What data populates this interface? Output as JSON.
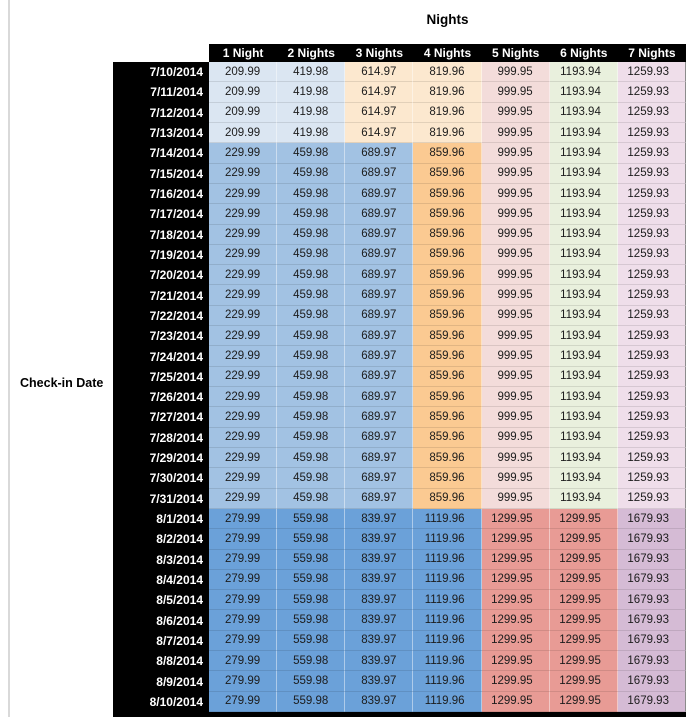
{
  "title": "Nights",
  "row_axis_label": "Check-in Date",
  "columns": [
    "1 Night",
    "2 Nights",
    "3 Nights",
    "4 Nights",
    "5 Nights",
    "6 Nights",
    "7 Nights"
  ],
  "colors": {
    "paleblue": "#dbe6f2",
    "peach": "#fce8cf",
    "pink": "#f3dcda",
    "green": "#e9f0dd",
    "lavender": "#efdeea",
    "medblue": "#a2c2e3",
    "orange": "#fbca92",
    "strongblue": "#6ba1d9",
    "salmon": "#e89b95",
    "purple": "#d5bbd5",
    "header_bg": "#000000",
    "header_text": "#ffffff"
  },
  "band_colors": {
    "a": [
      "paleblue",
      "paleblue",
      "peach",
      "peach",
      "pink",
      "green",
      "lavender"
    ],
    "b": [
      "medblue",
      "medblue",
      "medblue",
      "orange",
      "pink",
      "green",
      "lavender"
    ],
    "c": [
      "strongblue",
      "strongblue",
      "strongblue",
      "strongblue",
      "salmon",
      "salmon",
      "purple"
    ]
  },
  "chart_data": {
    "type": "table",
    "title": "Nights",
    "row_label": "Check-in Date",
    "columns": [
      "1 Night",
      "2 Nights",
      "3 Nights",
      "4 Nights",
      "5 Nights",
      "6 Nights",
      "7 Nights"
    ],
    "rows": [
      {
        "date": "7/10/2014",
        "band": "a",
        "values": [
          209.99,
          419.98,
          614.97,
          819.96,
          999.95,
          1193.94,
          1259.93
        ]
      },
      {
        "date": "7/11/2014",
        "band": "a",
        "values": [
          209.99,
          419.98,
          614.97,
          819.96,
          999.95,
          1193.94,
          1259.93
        ]
      },
      {
        "date": "7/12/2014",
        "band": "a",
        "values": [
          209.99,
          419.98,
          614.97,
          819.96,
          999.95,
          1193.94,
          1259.93
        ]
      },
      {
        "date": "7/13/2014",
        "band": "a",
        "values": [
          209.99,
          419.98,
          614.97,
          819.96,
          999.95,
          1193.94,
          1259.93
        ]
      },
      {
        "date": "7/14/2014",
        "band": "b",
        "values": [
          229.99,
          459.98,
          689.97,
          859.96,
          999.95,
          1193.94,
          1259.93
        ]
      },
      {
        "date": "7/15/2014",
        "band": "b",
        "values": [
          229.99,
          459.98,
          689.97,
          859.96,
          999.95,
          1193.94,
          1259.93
        ]
      },
      {
        "date": "7/16/2014",
        "band": "b",
        "values": [
          229.99,
          459.98,
          689.97,
          859.96,
          999.95,
          1193.94,
          1259.93
        ]
      },
      {
        "date": "7/17/2014",
        "band": "b",
        "values": [
          229.99,
          459.98,
          689.97,
          859.96,
          999.95,
          1193.94,
          1259.93
        ]
      },
      {
        "date": "7/18/2014",
        "band": "b",
        "values": [
          229.99,
          459.98,
          689.97,
          859.96,
          999.95,
          1193.94,
          1259.93
        ]
      },
      {
        "date": "7/19/2014",
        "band": "b",
        "values": [
          229.99,
          459.98,
          689.97,
          859.96,
          999.95,
          1193.94,
          1259.93
        ]
      },
      {
        "date": "7/20/2014",
        "band": "b",
        "values": [
          229.99,
          459.98,
          689.97,
          859.96,
          999.95,
          1193.94,
          1259.93
        ]
      },
      {
        "date": "7/21/2014",
        "band": "b",
        "values": [
          229.99,
          459.98,
          689.97,
          859.96,
          999.95,
          1193.94,
          1259.93
        ]
      },
      {
        "date": "7/22/2014",
        "band": "b",
        "values": [
          229.99,
          459.98,
          689.97,
          859.96,
          999.95,
          1193.94,
          1259.93
        ]
      },
      {
        "date": "7/23/2014",
        "band": "b",
        "values": [
          229.99,
          459.98,
          689.97,
          859.96,
          999.95,
          1193.94,
          1259.93
        ]
      },
      {
        "date": "7/24/2014",
        "band": "b",
        "values": [
          229.99,
          459.98,
          689.97,
          859.96,
          999.95,
          1193.94,
          1259.93
        ]
      },
      {
        "date": "7/25/2014",
        "band": "b",
        "values": [
          229.99,
          459.98,
          689.97,
          859.96,
          999.95,
          1193.94,
          1259.93
        ]
      },
      {
        "date": "7/26/2014",
        "band": "b",
        "values": [
          229.99,
          459.98,
          689.97,
          859.96,
          999.95,
          1193.94,
          1259.93
        ]
      },
      {
        "date": "7/27/2014",
        "band": "b",
        "values": [
          229.99,
          459.98,
          689.97,
          859.96,
          999.95,
          1193.94,
          1259.93
        ]
      },
      {
        "date": "7/28/2014",
        "band": "b",
        "values": [
          229.99,
          459.98,
          689.97,
          859.96,
          999.95,
          1193.94,
          1259.93
        ]
      },
      {
        "date": "7/29/2014",
        "band": "b",
        "values": [
          229.99,
          459.98,
          689.97,
          859.96,
          999.95,
          1193.94,
          1259.93
        ]
      },
      {
        "date": "7/30/2014",
        "band": "b",
        "values": [
          229.99,
          459.98,
          689.97,
          859.96,
          999.95,
          1193.94,
          1259.93
        ]
      },
      {
        "date": "7/31/2014",
        "band": "b",
        "values": [
          229.99,
          459.98,
          689.97,
          859.96,
          999.95,
          1193.94,
          1259.93
        ]
      },
      {
        "date": "8/1/2014",
        "band": "c",
        "values": [
          279.99,
          559.98,
          839.97,
          1119.96,
          1299.95,
          1299.95,
          1679.93
        ]
      },
      {
        "date": "8/2/2014",
        "band": "c",
        "values": [
          279.99,
          559.98,
          839.97,
          1119.96,
          1299.95,
          1299.95,
          1679.93
        ]
      },
      {
        "date": "8/3/2014",
        "band": "c",
        "values": [
          279.99,
          559.98,
          839.97,
          1119.96,
          1299.95,
          1299.95,
          1679.93
        ]
      },
      {
        "date": "8/4/2014",
        "band": "c",
        "values": [
          279.99,
          559.98,
          839.97,
          1119.96,
          1299.95,
          1299.95,
          1679.93
        ]
      },
      {
        "date": "8/5/2014",
        "band": "c",
        "values": [
          279.99,
          559.98,
          839.97,
          1119.96,
          1299.95,
          1299.95,
          1679.93
        ]
      },
      {
        "date": "8/6/2014",
        "band": "c",
        "values": [
          279.99,
          559.98,
          839.97,
          1119.96,
          1299.95,
          1299.95,
          1679.93
        ]
      },
      {
        "date": "8/7/2014",
        "band": "c",
        "values": [
          279.99,
          559.98,
          839.97,
          1119.96,
          1299.95,
          1299.95,
          1679.93
        ]
      },
      {
        "date": "8/8/2014",
        "band": "c",
        "values": [
          279.99,
          559.98,
          839.97,
          1119.96,
          1299.95,
          1299.95,
          1679.93
        ]
      },
      {
        "date": "8/9/2014",
        "band": "c",
        "values": [
          279.99,
          559.98,
          839.97,
          1119.96,
          1299.95,
          1299.95,
          1679.93
        ]
      },
      {
        "date": "8/10/2014",
        "band": "c",
        "values": [
          279.99,
          559.98,
          839.97,
          1119.96,
          1299.95,
          1299.95,
          1679.93
        ]
      }
    ]
  }
}
